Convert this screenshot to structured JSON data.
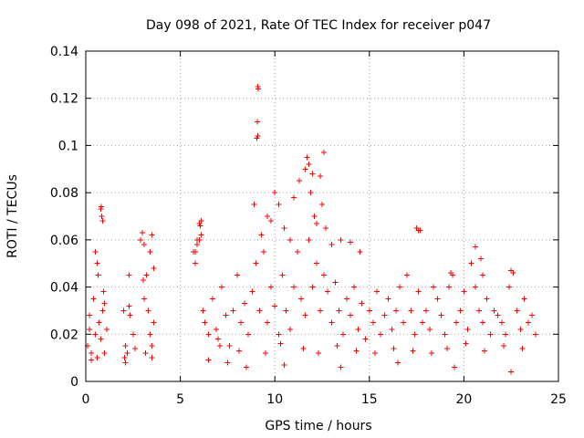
{
  "chart_data": {
    "type": "scatter",
    "title": "Day 098 of 2021, Rate Of TEC Index for receiver p047",
    "xlabel": "GPS time / hours",
    "ylabel": "ROTI / TECUs",
    "xlim": [
      0,
      25
    ],
    "ylim": [
      0,
      0.14
    ],
    "x_ticks": [
      "0",
      "5",
      "10",
      "15",
      "20",
      "25"
    ],
    "y_ticks": [
      "0",
      "0.02",
      "0.04",
      "0.06",
      "0.08",
      "0.1",
      "0.12",
      "0.14"
    ],
    "grid": true,
    "marker": "plus",
    "color": "#ff0000",
    "series": [
      {
        "name": "ROTI p047",
        "x": [
          0.1,
          0.2,
          0.3,
          0.4,
          0.5,
          0.6,
          0.7,
          0.8,
          0.9,
          1.0,
          1.1,
          0.5,
          0.6,
          0.65,
          0.8,
          0.82,
          0.85,
          0.9,
          0.95,
          1.0,
          0.3,
          0.2,
          2.0,
          2.1,
          2.2,
          2.3,
          2.35,
          2.5,
          2.6,
          2.3,
          2.05,
          2.1,
          2.9,
          3.0,
          3.1,
          3.2,
          3.3,
          3.4,
          3.5,
          3.6,
          3.05,
          3.1,
          3.15,
          3.4,
          3.5,
          3.6,
          3.5,
          5.7,
          5.8,
          5.9,
          6.0,
          6.1,
          6.2,
          6.3,
          6.5,
          6.7,
          6.9,
          7.0,
          7.2,
          7.4,
          7.6,
          7.8,
          8.0,
          8.2,
          8.4,
          8.6,
          8.8,
          9.0,
          9.2,
          9.4,
          9.6,
          9.8,
          10.0,
          10.2,
          10.4,
          10.6,
          10.8,
          11.0,
          11.2,
          11.4,
          11.6,
          11.8,
          12.0,
          12.2,
          12.4,
          12.6,
          12.8,
          13.0,
          13.2,
          13.4,
          13.6,
          13.8,
          14.0,
          14.2,
          14.4,
          14.6,
          14.8,
          15.0,
          15.2,
          15.4,
          15.6,
          15.8,
          16.0,
          16.2,
          16.4,
          16.6,
          16.8,
          17.0,
          17.2,
          17.4,
          17.6,
          17.8,
          18.0,
          18.2,
          18.4,
          18.6,
          18.8,
          19.0,
          19.2,
          19.4,
          19.6,
          19.8,
          20.0,
          20.2,
          20.4,
          20.6,
          20.8,
          21.0,
          21.2,
          21.4,
          21.6,
          21.8,
          22.0,
          22.2,
          22.4,
          22.6,
          22.8,
          23.0,
          23.2,
          23.4,
          23.6,
          23.8,
          5.8,
          5.9,
          6.0,
          6.05,
          6.1,
          9.1,
          9.12,
          9.08,
          9.1,
          9.05,
          8.9,
          9.3,
          9.6,
          9.8,
          10.0,
          10.2,
          10.5,
          10.8,
          11.0,
          11.3,
          11.6,
          11.7,
          11.8,
          11.9,
          12.0,
          12.1,
          12.2,
          12.4,
          12.5,
          12.6,
          12.7,
          13.0,
          13.5,
          14.0,
          14.5,
          17.5,
          17.6,
          17.7,
          19.3,
          20.6,
          20.9,
          21.0,
          22.5,
          22.6,
          6.5,
          7.5,
          8.5,
          10.5,
          13.5,
          16.5,
          19.5,
          22.5,
          7.1,
          8.1,
          9.5,
          10.3,
          11.5,
          12.3,
          13.3,
          14.3,
          15.3,
          16.3,
          17.3,
          18.3,
          19.1,
          20.1,
          21.1,
          22.1,
          23.1
        ],
        "y": [
          0.015,
          0.028,
          0.012,
          0.035,
          0.02,
          0.01,
          0.025,
          0.018,
          0.03,
          0.012,
          0.022,
          0.055,
          0.05,
          0.045,
          0.073,
          0.074,
          0.07,
          0.068,
          0.038,
          0.033,
          0.009,
          0.022,
          0.03,
          0.015,
          0.012,
          0.032,
          0.028,
          0.02,
          0.014,
          0.045,
          0.01,
          0.008,
          0.06,
          0.063,
          0.058,
          0.045,
          0.03,
          0.02,
          0.015,
          0.025,
          0.043,
          0.035,
          0.012,
          0.055,
          0.062,
          0.048,
          0.01,
          0.055,
          0.05,
          0.06,
          0.067,
          0.068,
          0.03,
          0.025,
          0.02,
          0.035,
          0.022,
          0.018,
          0.04,
          0.028,
          0.015,
          0.03,
          0.045,
          0.025,
          0.033,
          0.02,
          0.038,
          0.05,
          0.03,
          0.055,
          0.025,
          0.04,
          0.032,
          0.02,
          0.045,
          0.03,
          0.022,
          0.04,
          0.055,
          0.035,
          0.028,
          0.06,
          0.04,
          0.05,
          0.03,
          0.045,
          0.038,
          0.025,
          0.042,
          0.03,
          0.02,
          0.035,
          0.028,
          0.04,
          0.022,
          0.033,
          0.018,
          0.03,
          0.025,
          0.038,
          0.02,
          0.028,
          0.035,
          0.022,
          0.03,
          0.04,
          0.025,
          0.045,
          0.03,
          0.02,
          0.038,
          0.025,
          0.03,
          0.022,
          0.04,
          0.035,
          0.028,
          0.02,
          0.04,
          0.045,
          0.025,
          0.03,
          0.038,
          0.022,
          0.05,
          0.04,
          0.03,
          0.025,
          0.035,
          0.02,
          0.03,
          0.028,
          0.025,
          0.02,
          0.04,
          0.046,
          0.03,
          0.022,
          0.035,
          0.025,
          0.028,
          0.02,
          0.055,
          0.058,
          0.06,
          0.066,
          0.062,
          0.125,
          0.124,
          0.11,
          0.104,
          0.103,
          0.075,
          0.062,
          0.07,
          0.068,
          0.08,
          0.075,
          0.065,
          0.06,
          0.078,
          0.085,
          0.09,
          0.095,
          0.092,
          0.08,
          0.088,
          0.07,
          0.067,
          0.087,
          0.075,
          0.097,
          0.065,
          0.058,
          0.06,
          0.059,
          0.055,
          0.065,
          0.064,
          0.064,
          0.046,
          0.057,
          0.052,
          0.045,
          0.047,
          0.046,
          0.009,
          0.008,
          0.006,
          0.007,
          0.006,
          0.008,
          0.006,
          0.004,
          0.015,
          0.013,
          0.012,
          0.016,
          0.014,
          0.012,
          0.015,
          0.013,
          0.012,
          0.014,
          0.013,
          0.012,
          0.014,
          0.016,
          0.013,
          0.015,
          0.014
        ]
      }
    ]
  }
}
